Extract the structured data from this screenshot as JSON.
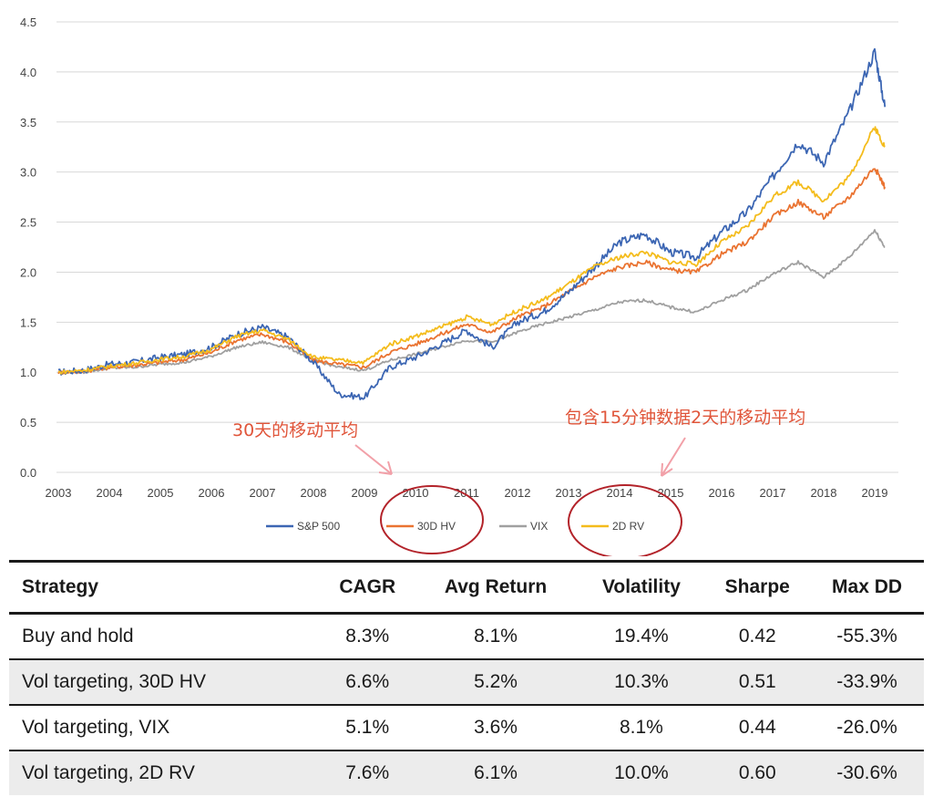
{
  "chart_data": {
    "type": "line",
    "title": "",
    "xlabel": "",
    "ylabel": "",
    "x": [
      2003.0,
      2003.5,
      2004.0,
      2004.5,
      2005.0,
      2005.5,
      2006.0,
      2006.5,
      2007.0,
      2007.5,
      2008.0,
      2008.5,
      2009.0,
      2009.5,
      2010.0,
      2010.5,
      2011.0,
      2011.5,
      2012.0,
      2012.5,
      2013.0,
      2013.5,
      2014.0,
      2014.5,
      2015.0,
      2015.5,
      2016.0,
      2016.5,
      2017.0,
      2017.5,
      2018.0,
      2018.5,
      2019.0,
      2019.2
    ],
    "series": [
      {
        "name": "S&P 500",
        "color": "#3c66b3",
        "values": [
          1.0,
          1.02,
          1.08,
          1.1,
          1.15,
          1.18,
          1.25,
          1.38,
          1.45,
          1.35,
          1.1,
          0.78,
          0.75,
          1.05,
          1.15,
          1.28,
          1.42,
          1.25,
          1.5,
          1.6,
          1.8,
          2.05,
          2.3,
          2.38,
          2.2,
          2.15,
          2.4,
          2.6,
          2.95,
          3.3,
          3.1,
          3.6,
          4.2,
          3.65
        ]
      },
      {
        "name": "30D HV",
        "color": "#ea7331",
        "values": [
          1.0,
          1.01,
          1.05,
          1.07,
          1.1,
          1.13,
          1.2,
          1.32,
          1.38,
          1.3,
          1.12,
          1.08,
          1.05,
          1.2,
          1.28,
          1.38,
          1.48,
          1.4,
          1.55,
          1.65,
          1.8,
          1.95,
          2.05,
          2.1,
          2.02,
          2.0,
          2.18,
          2.3,
          2.55,
          2.7,
          2.55,
          2.75,
          3.05,
          2.85
        ]
      },
      {
        "name": "VIX",
        "color": "#a0a0a0",
        "values": [
          1.0,
          1.0,
          1.04,
          1.05,
          1.08,
          1.1,
          1.16,
          1.25,
          1.3,
          1.25,
          1.12,
          1.05,
          1.02,
          1.12,
          1.18,
          1.25,
          1.32,
          1.3,
          1.4,
          1.48,
          1.55,
          1.62,
          1.7,
          1.72,
          1.65,
          1.6,
          1.72,
          1.82,
          1.98,
          2.1,
          1.95,
          2.15,
          2.42,
          2.25
        ]
      },
      {
        "name": "2D RV",
        "color": "#f4bc1c",
        "values": [
          1.0,
          1.02,
          1.06,
          1.09,
          1.13,
          1.16,
          1.23,
          1.36,
          1.42,
          1.33,
          1.15,
          1.12,
          1.1,
          1.28,
          1.36,
          1.45,
          1.55,
          1.48,
          1.62,
          1.72,
          1.88,
          2.05,
          2.15,
          2.2,
          2.1,
          2.08,
          2.3,
          2.45,
          2.75,
          2.9,
          2.72,
          2.95,
          3.45,
          3.25
        ]
      }
    ],
    "ylim": [
      0,
      4.5
    ],
    "yticks": [
      "0.0",
      "0.5",
      "1.0",
      "1.5",
      "2.0",
      "2.5",
      "3.0",
      "3.5",
      "4.0",
      "4.5"
    ],
    "xlim": [
      2003,
      2019.5
    ],
    "xticks": [
      "2003",
      "2004",
      "2005",
      "2006",
      "2007",
      "2008",
      "2009",
      "2010",
      "2011",
      "2012",
      "2013",
      "2014",
      "2015",
      "2016",
      "2017",
      "2018",
      "2019"
    ],
    "grid": true,
    "legend_position": "bottom-center",
    "annotations": [
      {
        "text": "30天的移动平均",
        "points_to": "2009.5",
        "circled_legend": "30D HV"
      },
      {
        "text": "包含15分钟数据2天的移动平均",
        "points_to": "2014.6",
        "circled_legend": "2D RV"
      }
    ]
  },
  "table": {
    "headers": [
      "Strategy",
      "CAGR",
      "Avg Return",
      "Volatility",
      "Sharpe",
      "Max DD"
    ],
    "rows": [
      [
        "Buy and hold",
        "8.3%",
        "8.1%",
        "19.4%",
        "0.42",
        "-55.3%"
      ],
      [
        "Vol targeting, 30D HV",
        "6.6%",
        "5.2%",
        "10.3%",
        "0.51",
        "-33.9%"
      ],
      [
        "Vol targeting, VIX",
        "5.1%",
        "3.6%",
        "8.1%",
        "0.44",
        "-26.0%"
      ],
      [
        "Vol targeting, 2D RV",
        "7.6%",
        "6.1%",
        "10.0%",
        "0.60",
        "-30.6%"
      ]
    ]
  },
  "colors": {
    "annotation": "#e0553a",
    "circle": "#b3232a",
    "grid": "#d8d8d8"
  }
}
